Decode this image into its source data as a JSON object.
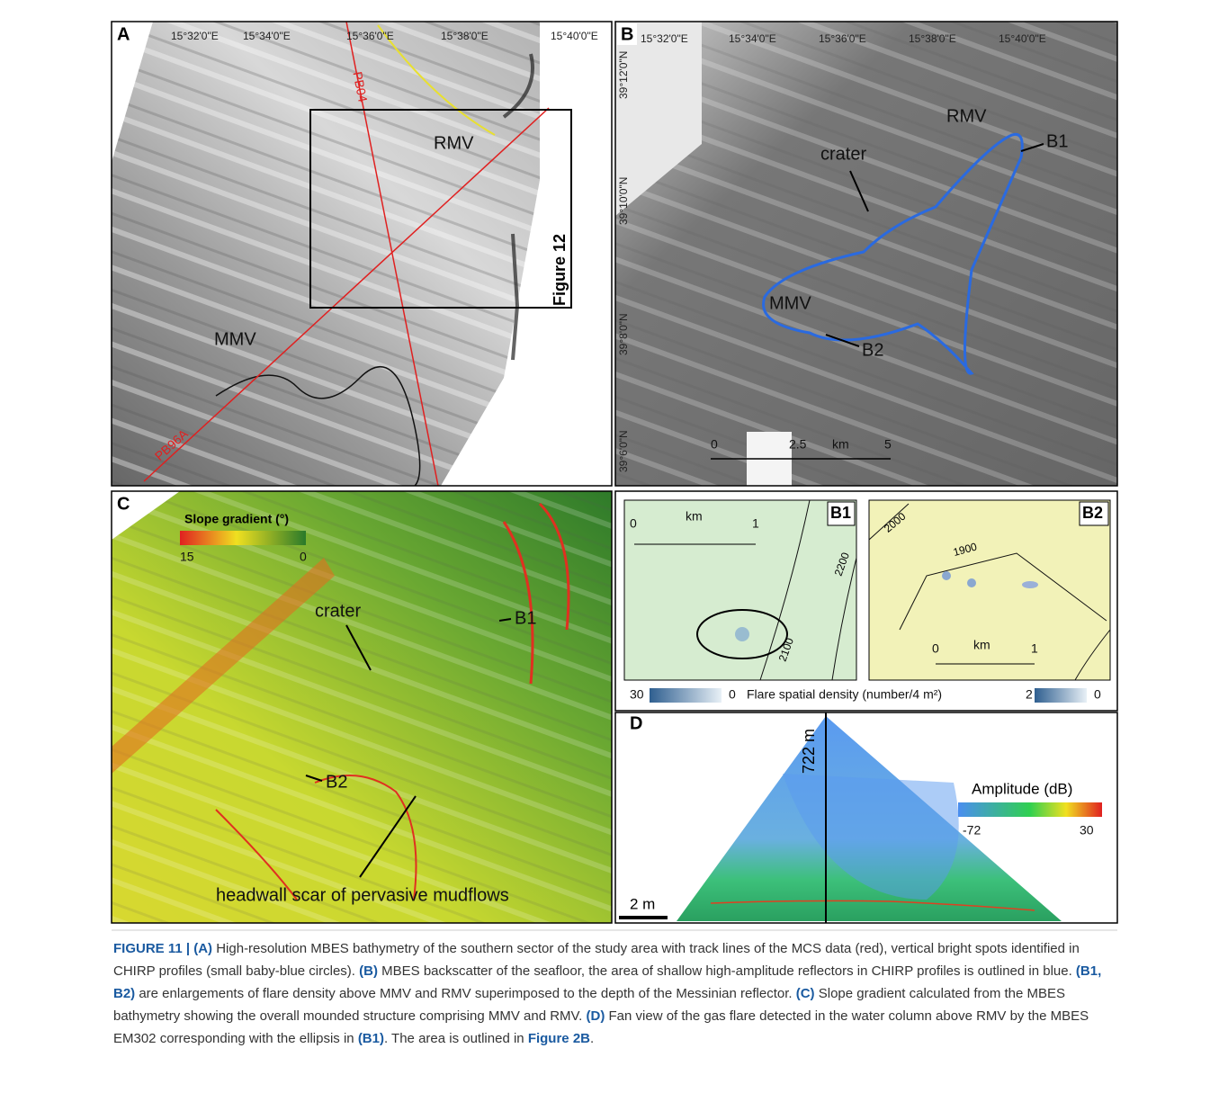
{
  "panel_a": {
    "label": "A",
    "lon_labels": [
      "15°32'0\"E",
      "15°34'0\"E",
      "15°36'0\"E",
      "15°38'0\"E",
      "15°40'0\"E"
    ],
    "line_1": "PB04",
    "line_2": "PB96A",
    "rmv": "RMV",
    "mmv": "MMV",
    "box": "Figure 12"
  },
  "panel_b": {
    "label": "B",
    "lon_labels": [
      "15°32'0\"E",
      "15°34'0\"E",
      "15°36'0\"E",
      "15°38'0\"E",
      "15°40'0\"E"
    ],
    "lat_labels": [
      "39°12'0\"N",
      "39°10'0\"N",
      "39°8'0\"N",
      "39°6'0\"N"
    ],
    "rmv": "RMV",
    "b1": "B1",
    "crater": "crater",
    "mmv": "MMV",
    "b2": "B2",
    "scale": [
      "0",
      "2.5",
      "km",
      "5"
    ]
  },
  "panel_c": {
    "label": "C",
    "legend_title": "Slope gradient (°)",
    "legend_min": "15",
    "legend_max": "0",
    "crater": "crater",
    "b1": "B1",
    "b2": "B2",
    "headwall": "headwall scar of pervasive mudflows"
  },
  "panel_b1": {
    "label": "B1",
    "scale": [
      "0",
      "km",
      "1"
    ],
    "contours": [
      "2100",
      "2200"
    ]
  },
  "panel_b2": {
    "label": "B2",
    "contours": [
      "2000",
      "1900"
    ],
    "scale": [
      "0",
      "km",
      "1"
    ]
  },
  "flare_legend": {
    "b1_min": "30",
    "b1_max": "0",
    "title": "Flare spatial density (number/4 m²)",
    "b2_min": "2",
    "b2_max": "0"
  },
  "panel_d": {
    "label": "D",
    "depth": "722 m",
    "legend_title": "Amplitude (dB)",
    "legend_min": "-72",
    "legend_max": "30",
    "scale": "2 m"
  },
  "caption": [
    "FIGURE 11 | (A)",
    " High-resolution MBES bathymetry of the southern sector of the study area with track lines of the MCS data (red), vertical bright spots identified in CHIRP profiles (small baby-blue circles). ",
    "(B)",
    " MBES backscatter of the seafloor, the area of shallow high-amplitude reflectors in CHIRP profiles is outlined in blue. ",
    "(B1, B2)",
    " are enlargements of flare density above MMV and RMV superimposed to the depth of the Messinian reflector. ",
    "(C)",
    " Slope gradient calculated from the MBES bathymetry showing the overall mounded structure comprising MMV and RMV. ",
    "(D)",
    " Fan view of the gas flare detected in the water column above RMV by the MBES EM302 corresponding with the ellipsis in ",
    "(B1)",
    ". The area is outlined in ",
    "Figure 2B",
    "."
  ]
}
